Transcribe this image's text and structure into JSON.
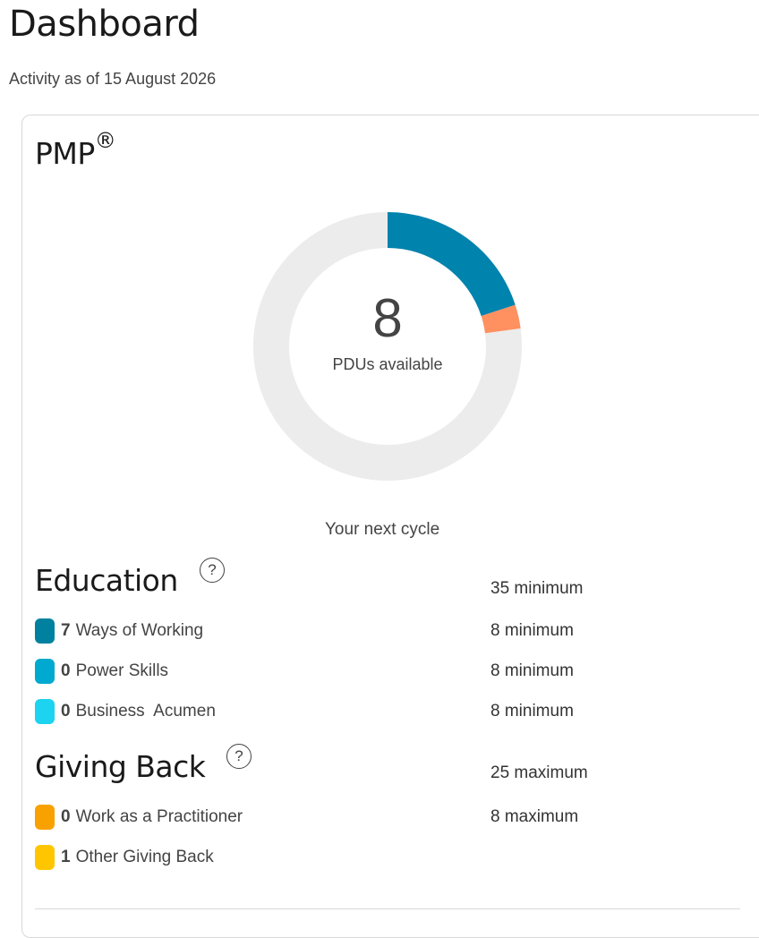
{
  "header": {
    "title": "Dashboard",
    "activity_date": "Activity as of 15 August 2026"
  },
  "card": {
    "title": "PMP",
    "title_mark": "®",
    "donut": {
      "value": "8",
      "label": "PDUs available",
      "segments": [
        {
          "name": "Ways of Working",
          "value": 7,
          "color": "#0083ad"
        },
        {
          "name": "Other Giving Back",
          "value": 1,
          "color": "#ff9060"
        }
      ],
      "total_scale": 35,
      "track_color": "#ececec"
    },
    "next_cycle": "Your next cycle",
    "education": {
      "title": "Education",
      "help_icon": "?",
      "requirement": "35 minimum",
      "items": [
        {
          "count": "7",
          "label": "Ways of Working",
          "requirement": "8 minimum",
          "color": "#00819f"
        },
        {
          "count": "0",
          "label": "Power Skills",
          "requirement": "8 minimum",
          "color": "#00a9cf"
        },
        {
          "count": "0",
          "label": "Business  Acumen",
          "requirement": "8 minimum",
          "color": "#1cd3f0"
        }
      ]
    },
    "giving_back": {
      "title": "Giving Back",
      "help_icon": "?",
      "requirement": "25 maximum",
      "items": [
        {
          "count": "0",
          "label": "Work as a Practitioner",
          "requirement": "8 maximum",
          "color": "#f8a100"
        },
        {
          "count": "1",
          "label": "Other Giving Back",
          "requirement": "",
          "color": "#ffc600"
        }
      ]
    }
  }
}
